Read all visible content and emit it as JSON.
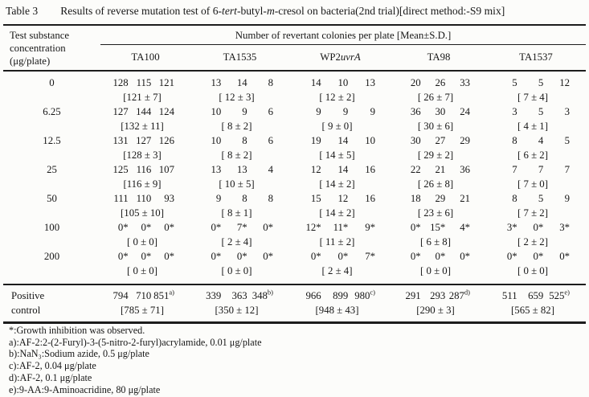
{
  "title": {
    "label": "Table 3",
    "part1": "Results of reverse mutation test of 6-",
    "part2": "tert",
    "part3": "-butyl-",
    "part4": "m",
    "part5": "-cresol on bacteria(2nd trial)[direct method:-S9 mix]"
  },
  "table": {
    "header": {
      "col1_lines": [
        "Test substance",
        "concentration",
        "(μg/plate)"
      ],
      "span_title": "Number of revertant colonies per plate [Mean±S.D.]"
    },
    "strains": [
      {
        "id": "ta100",
        "name": "TA100"
      },
      {
        "id": "ta1535",
        "name": "TA1535"
      },
      {
        "id": "wp2uvra",
        "pre": "WP2",
        "italic": "uvrA"
      },
      {
        "id": "ta98",
        "name": "TA98"
      },
      {
        "id": "ta1537",
        "name": "TA1537"
      }
    ],
    "rows": [
      {
        "conc": "0",
        "cells": [
          {
            "values": [
              "128",
              "115",
              "121"
            ],
            "mean": "[121 ± 7]"
          },
          {
            "values": [
              "13",
              "14",
              "8"
            ],
            "mean": "[ 12 ± 3]"
          },
          {
            "values": [
              "14",
              "10",
              "13"
            ],
            "mean": "[ 12 ± 2]"
          },
          {
            "values": [
              "20",
              "26",
              "33"
            ],
            "mean": "[ 26 ± 7]"
          },
          {
            "values": [
              "5",
              "5",
              "12"
            ],
            "mean": "[ 7 ± 4]"
          }
        ]
      },
      {
        "conc": "6.25",
        "cells": [
          {
            "values": [
              "127",
              "144",
              "124"
            ],
            "mean": "[132 ± 11]"
          },
          {
            "values": [
              "10",
              "9",
              "6"
            ],
            "mean": "[ 8 ± 2]"
          },
          {
            "values": [
              "9",
              "9",
              "9"
            ],
            "mean": "[ 9 ± 0]"
          },
          {
            "values": [
              "36",
              "30",
              "24"
            ],
            "mean": "[ 30 ± 6]"
          },
          {
            "values": [
              "3",
              "5",
              "3"
            ],
            "mean": "[ 4 ± 1]"
          }
        ]
      },
      {
        "conc": "12.5",
        "cells": [
          {
            "values": [
              "131",
              "127",
              "126"
            ],
            "mean": "[128 ± 3]"
          },
          {
            "values": [
              "10",
              "8",
              "6"
            ],
            "mean": "[ 8 ± 2]"
          },
          {
            "values": [
              "19",
              "14",
              "10"
            ],
            "mean": "[ 14 ± 5]"
          },
          {
            "values": [
              "30",
              "27",
              "29"
            ],
            "mean": "[ 29 ± 2]"
          },
          {
            "values": [
              "8",
              "4",
              "5"
            ],
            "mean": "[ 6 ± 2]"
          }
        ]
      },
      {
        "conc": "25",
        "cells": [
          {
            "values": [
              "125",
              "116",
              "107"
            ],
            "mean": "[116 ± 9]"
          },
          {
            "values": [
              "13",
              "13",
              "4"
            ],
            "mean": "[ 10 ± 5]"
          },
          {
            "values": [
              "12",
              "14",
              "16"
            ],
            "mean": "[ 14 ± 2]"
          },
          {
            "values": [
              "22",
              "21",
              "36"
            ],
            "mean": "[ 26 ± 8]"
          },
          {
            "values": [
              "7",
              "7",
              "7"
            ],
            "mean": "[ 7 ± 0]"
          }
        ]
      },
      {
        "conc": "50",
        "cells": [
          {
            "values": [
              "111",
              "110",
              "93"
            ],
            "mean": "[105 ± 10]"
          },
          {
            "values": [
              "9",
              "8",
              "8"
            ],
            "mean": "[ 8 ± 1]"
          },
          {
            "values": [
              "15",
              "12",
              "16"
            ],
            "mean": "[ 14 ± 2]"
          },
          {
            "values": [
              "18",
              "29",
              "21"
            ],
            "mean": "[ 23 ± 6]"
          },
          {
            "values": [
              "8",
              "5",
              "9"
            ],
            "mean": "[ 7 ± 2]"
          }
        ]
      },
      {
        "conc": "100",
        "cells": [
          {
            "values": [
              "0*",
              "0*",
              "0*"
            ],
            "mean": "[ 0 ± 0]"
          },
          {
            "values": [
              "0*",
              "7*",
              "0*"
            ],
            "mean": "[ 2 ± 4]"
          },
          {
            "values": [
              "12*",
              "11*",
              "9*"
            ],
            "mean": "[ 11 ± 2]"
          },
          {
            "values": [
              "0*",
              "15*",
              "4*"
            ],
            "mean": "[ 6 ± 8]"
          },
          {
            "values": [
              "3*",
              "0*",
              "3*"
            ],
            "mean": "[ 2 ± 2]"
          }
        ]
      },
      {
        "conc": "200",
        "cells": [
          {
            "values": [
              "0*",
              "0*",
              "0*"
            ],
            "mean": "[ 0 ± 0]"
          },
          {
            "values": [
              "0*",
              "0*",
              "0*"
            ],
            "mean": "[ 0 ± 0]"
          },
          {
            "values": [
              "0*",
              "0*",
              "7*"
            ],
            "mean": "[ 2 ± 4]"
          },
          {
            "values": [
              "0*",
              "0*",
              "0*"
            ],
            "mean": "[ 0 ± 0]"
          },
          {
            "values": [
              "0*",
              "0*",
              "0*"
            ],
            "mean": "[ 0 ± 0]"
          }
        ]
      }
    ],
    "positive_control": {
      "label_lines": [
        "Positive",
        "control"
      ],
      "cells": [
        {
          "values": [
            "794",
            "710",
            "851"
          ],
          "sup": "a)",
          "mean": "[785 ± 71]"
        },
        {
          "values": [
            "339",
            "363",
            "348"
          ],
          "sup": "b)",
          "mean": "[350 ± 12]"
        },
        {
          "values": [
            "966",
            "899",
            "980"
          ],
          "sup": "c)",
          "mean": "[948 ± 43]"
        },
        {
          "values": [
            "291",
            "293",
            "287"
          ],
          "sup": "d)",
          "mean": "[290 ± 3]"
        },
        {
          "values": [
            "511",
            "659",
            "525"
          ],
          "sup": "e)",
          "mean": "[565 ± 82]"
        }
      ]
    }
  },
  "footnotes": [
    "*:Growth inhibition was observed.",
    "a):AF-2:2-(2-Furyl)-3-(5-nitro-2-furyl)acrylamide, 0.01 μg/plate",
    "b):NaN₃:Sodium azide, 0.5 μg/plate",
    "c):AF-2, 0.04 μg/plate",
    "d):AF-2, 0.1 μg/plate",
    "e):9-AA:9-Aminoacridine, 80 μg/plate"
  ]
}
